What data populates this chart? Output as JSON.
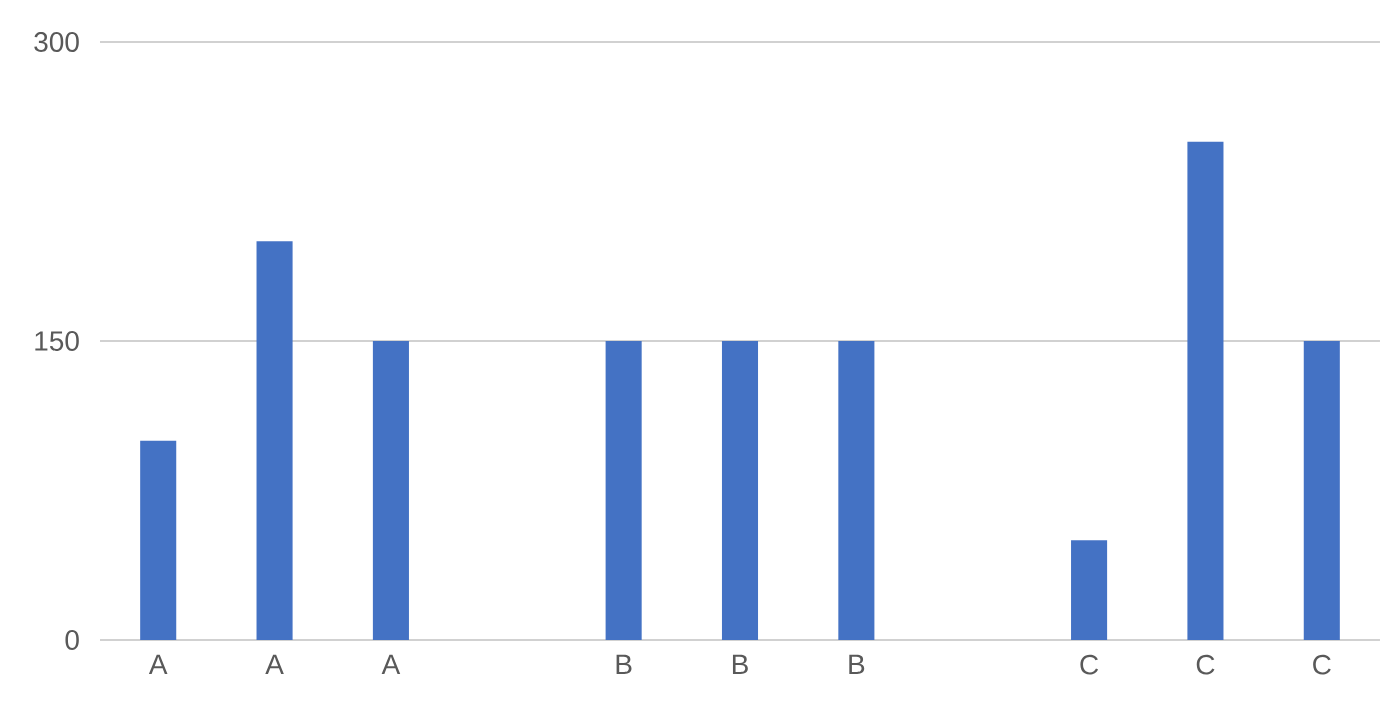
{
  "chart_data": {
    "type": "bar",
    "categories": [
      "A",
      "A",
      "A",
      null,
      "B",
      "B",
      "B",
      null,
      "C",
      "C",
      "C"
    ],
    "values": [
      100,
      200,
      150,
      null,
      150,
      150,
      150,
      null,
      50,
      250,
      150
    ],
    "color": "#4472c4",
    "ylim": [
      0,
      300
    ],
    "yticks": [
      0,
      150,
      300
    ],
    "grid": "y"
  }
}
